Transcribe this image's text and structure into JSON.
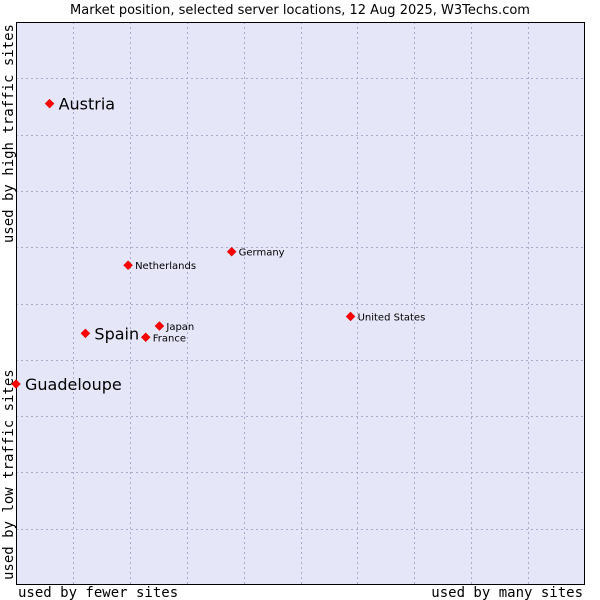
{
  "chart_data": {
    "type": "scatter",
    "title": "Market position, selected server locations, 12 Aug 2025, W3Techs.com",
    "xlabel_left": "used by fewer sites",
    "xlabel_right": "used by many sites",
    "ylabel_low": "used by low traffic sites",
    "ylabel_high": "used by high traffic sites",
    "xlim": [
      0,
      100
    ],
    "ylim": [
      0,
      100
    ],
    "grid": true,
    "colors": {
      "plot_bg": "#e6e6f9",
      "marker": "#ff0000",
      "frame": "#000000",
      "grid": "#aaaacc"
    },
    "points": [
      {
        "name": "Austria",
        "x": 5.9,
        "y": 85.5,
        "highlight": true
      },
      {
        "name": "Germany",
        "x": 37.9,
        "y": 59.2,
        "highlight": false
      },
      {
        "name": "Netherlands",
        "x": 19.7,
        "y": 56.8,
        "highlight": false
      },
      {
        "name": "United States",
        "x": 58.8,
        "y": 47.7,
        "highlight": false
      },
      {
        "name": "Japan",
        "x": 25.2,
        "y": 46.0,
        "highlight": false
      },
      {
        "name": "Spain",
        "x": 12.2,
        "y": 44.7,
        "highlight": true
      },
      {
        "name": "France",
        "x": 22.8,
        "y": 44.0,
        "highlight": false
      },
      {
        "name": "Guadeloupe",
        "x": 0.0,
        "y": 35.7,
        "highlight": true
      }
    ]
  }
}
